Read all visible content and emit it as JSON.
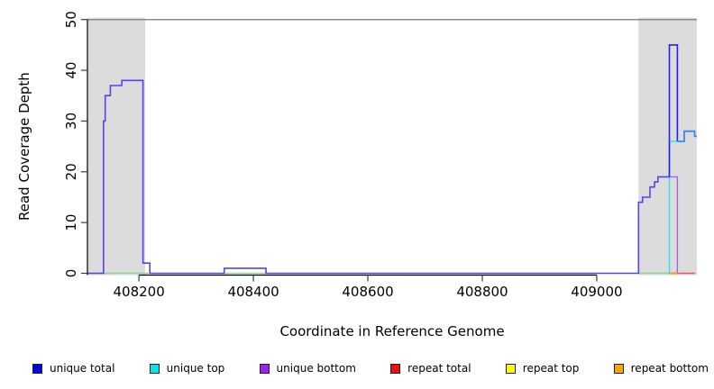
{
  "chart_data": {
    "type": "line",
    "title": "",
    "xlabel": "Coordinate in Reference Genome",
    "ylabel": "Read Coverage Depth",
    "xlim": [
      408110,
      409175
    ],
    "ylim": [
      0,
      50
    ],
    "x_ticks": [
      408200,
      408400,
      408600,
      408800,
      409000
    ],
    "y_ticks": [
      0,
      10,
      20,
      30,
      40,
      50
    ],
    "grid": false,
    "legend_position": "bottom",
    "top_reference_line": {
      "y": 50,
      "color": "#8c8c8c"
    },
    "shaded_regions": [
      {
        "name": "masked-region-left",
        "x0": 408110,
        "x1": 408211,
        "color": "#dcdcdc"
      },
      {
        "name": "masked-region-right",
        "x0": 409073,
        "x1": 409175,
        "color": "#dcdcdc"
      }
    ],
    "series": [
      {
        "name": "baseline-green-left",
        "color": "#8fd48f",
        "width": 1.4,
        "points": [
          [
            408116,
            0
          ],
          [
            408217,
            0
          ]
        ]
      },
      {
        "name": "baseline-green-middle",
        "color": "#8fd48f",
        "width": 1.4,
        "points": [
          [
            408349,
            0
          ],
          [
            408422,
            0
          ]
        ]
      },
      {
        "name": "baseline-green-right",
        "color": "#8fd48f",
        "width": 1.4,
        "points": [
          [
            409074,
            0
          ],
          [
            409127,
            0
          ]
        ]
      },
      {
        "name": "repeat-bottom-baseline-orange",
        "color": "#ff9f00",
        "width": 2,
        "points": [
          [
            409127,
            0
          ],
          [
            409143,
            0
          ]
        ]
      },
      {
        "name": "repeat-total-baseline-red",
        "color": "#ea5570",
        "width": 1.6,
        "points": [
          [
            409143,
            0
          ],
          [
            409172,
            0
          ]
        ]
      },
      {
        "name": "unique-top-cyan",
        "color": "#36dfe8",
        "width": 1.4,
        "points": [
          [
            409127,
            0
          ],
          [
            409127,
            26
          ],
          [
            409140,
            26
          ]
        ]
      },
      {
        "name": "unique-bottom-purple",
        "color": "#aa5fe3",
        "width": 1.4,
        "points": [
          [
            409128,
            19
          ],
          [
            409141,
            19
          ],
          [
            409141,
            0
          ]
        ]
      },
      {
        "name": "unique-total-main",
        "color": "#5844e6",
        "width": 1.6,
        "points": [
          [
            408110,
            0
          ],
          [
            408138,
            0
          ],
          [
            408138,
            30
          ],
          [
            408141,
            30
          ],
          [
            408141,
            35
          ],
          [
            408150,
            35
          ],
          [
            408150,
            37
          ],
          [
            408170,
            37
          ],
          [
            408170,
            38
          ],
          [
            408207,
            38
          ],
          [
            408207,
            2
          ],
          [
            408219,
            2
          ],
          [
            408219,
            0
          ],
          [
            408349,
            0
          ],
          [
            408349,
            1
          ],
          [
            408422,
            1
          ],
          [
            408422,
            0
          ],
          [
            409073,
            0
          ],
          [
            409073,
            14
          ],
          [
            409080,
            14
          ],
          [
            409080,
            15
          ],
          [
            409093,
            15
          ],
          [
            409093,
            17
          ],
          [
            409101,
            17
          ],
          [
            409101,
            18
          ],
          [
            409107,
            18
          ],
          [
            409107,
            19
          ],
          [
            409127,
            19
          ]
        ]
      },
      {
        "name": "unique-total-spike",
        "color": "#2020f0",
        "width": 1.6,
        "points": [
          [
            409127,
            19
          ],
          [
            409127,
            45
          ],
          [
            409141,
            45
          ],
          [
            409141,
            26
          ]
        ]
      },
      {
        "name": "unique-total-tail",
        "color": "#3b86ef",
        "width": 1.8,
        "points": [
          [
            409141,
            26
          ],
          [
            409153,
            26
          ],
          [
            409153,
            28
          ],
          [
            409171,
            28
          ],
          [
            409171,
            27
          ],
          [
            409175,
            27
          ]
        ]
      }
    ]
  },
  "legend": {
    "items": [
      {
        "label": "unique total",
        "color": "#0000ee"
      },
      {
        "label": "unique top",
        "color": "#00e6ee"
      },
      {
        "label": "unique bottom",
        "color": "#a020f0"
      },
      {
        "label": "repeat total",
        "color": "#ee1111"
      },
      {
        "label": "repeat top",
        "color": "#fdfd00"
      },
      {
        "label": "repeat bottom",
        "color": "#ffa300"
      }
    ]
  }
}
